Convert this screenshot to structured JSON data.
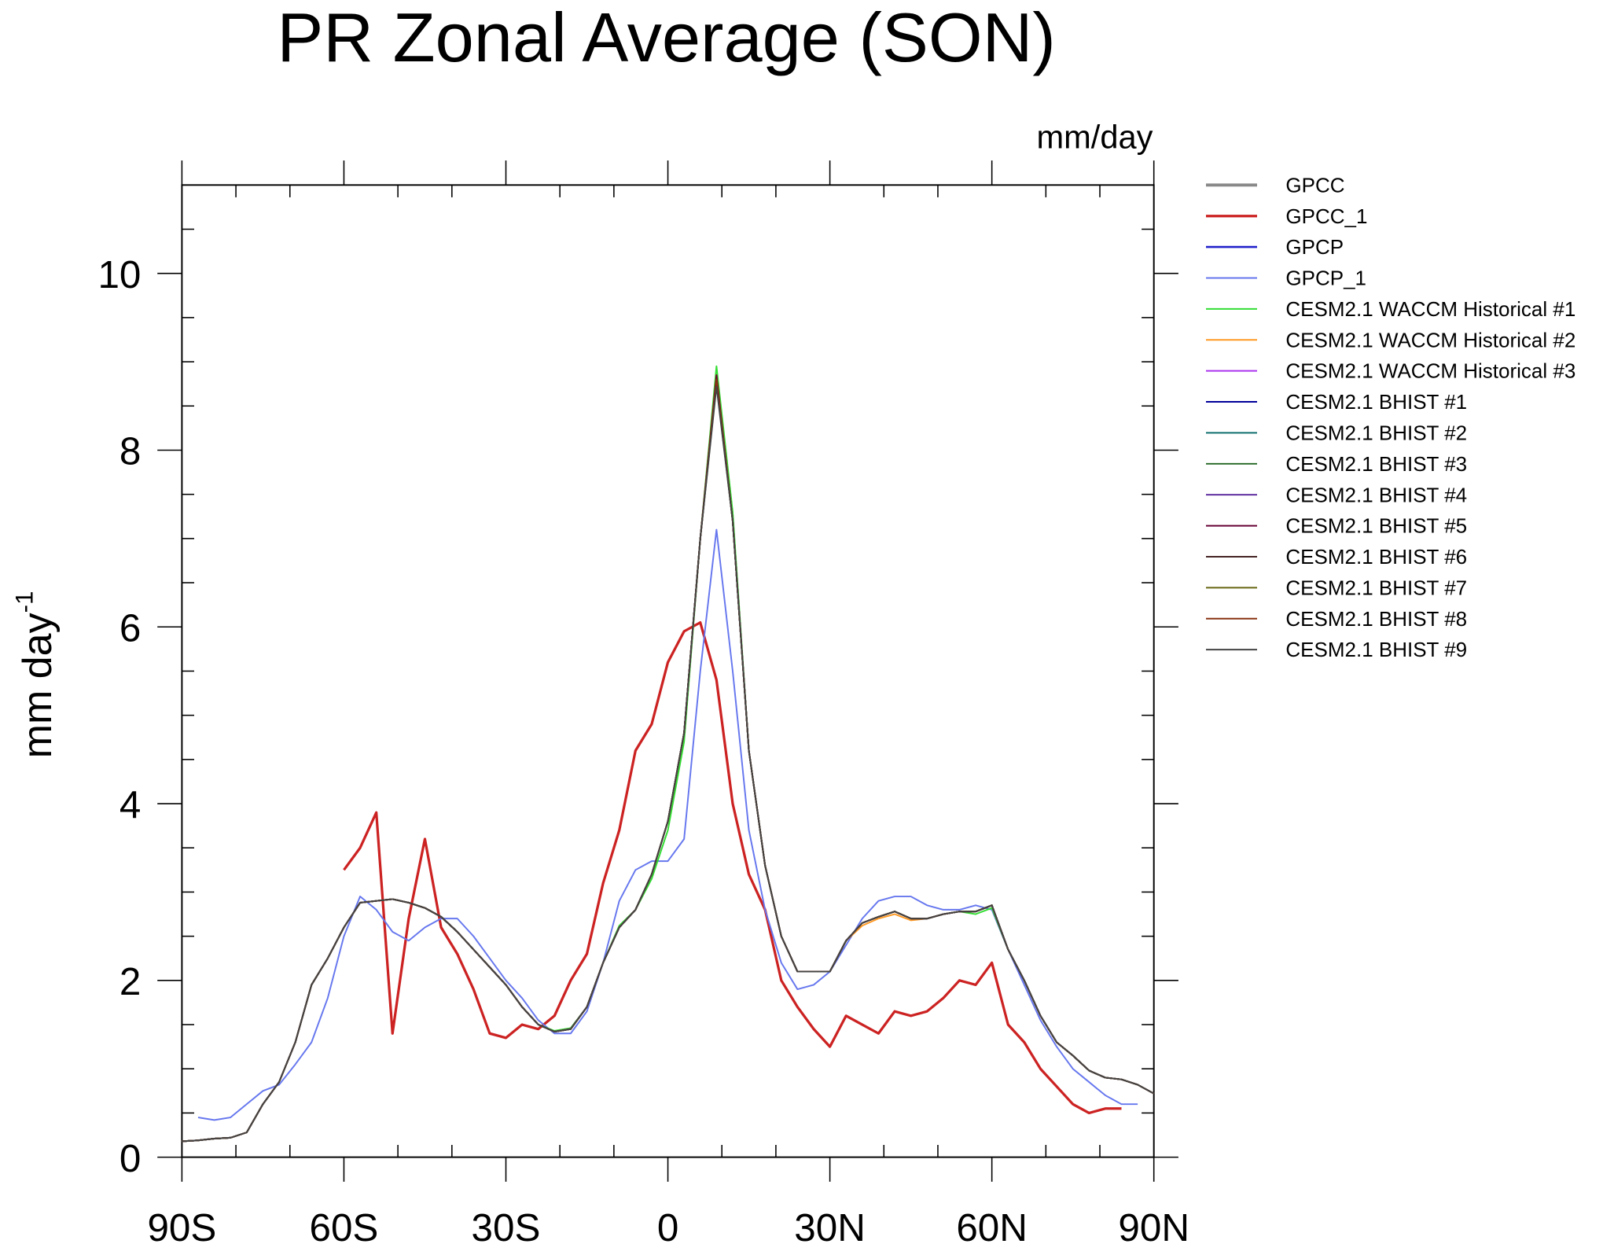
{
  "chart_data": {
    "type": "line",
    "title": "PR Zonal Average (SON)",
    "units": "mm/day",
    "y_label": "mm day",
    "y_label_sup": "-1",
    "xlim": [
      -90,
      90
    ],
    "ylim": [
      0,
      11
    ],
    "xticks": [
      {
        "value": -90,
        "label": "90S"
      },
      {
        "value": -60,
        "label": "60S"
      },
      {
        "value": -30,
        "label": "30S"
      },
      0,
      {
        "value": 30,
        "label": "30N"
      },
      {
        "value": 60,
        "label": "60N"
      },
      {
        "value": 90,
        "label": "90N"
      }
    ],
    "xminor_ticks": [
      -80,
      -70,
      -50,
      -40,
      -20,
      -10,
      10,
      20,
      40,
      50,
      70,
      80
    ],
    "yticks": [
      0,
      2,
      4,
      6,
      8,
      10
    ],
    "yminor_ticks": [
      0.5,
      1,
      1.5,
      2.5,
      3,
      3.5,
      4.5,
      5,
      5.5,
      6.5,
      7,
      7.5,
      8.5,
      9,
      9.5,
      10.5
    ],
    "x": [
      -90,
      -87,
      -84,
      -81,
      -78,
      -75,
      -72,
      -69,
      -66,
      -63,
      -60,
      -57,
      -54,
      -51,
      -48,
      -45,
      -42,
      -39,
      -36,
      -33,
      -30,
      -27,
      -24,
      -21,
      -18,
      -15,
      -12,
      -9,
      -6,
      -3,
      0,
      3,
      6,
      9,
      12,
      15,
      18,
      21,
      24,
      27,
      30,
      33,
      36,
      39,
      42,
      45,
      48,
      51,
      54,
      57,
      60,
      63,
      66,
      69,
      72,
      75,
      78,
      81,
      84,
      87,
      90
    ],
    "series": [
      {
        "name": "GPCC",
        "color": "#888888",
        "width": 3,
        "values": [
          null,
          null,
          null,
          null,
          null,
          null,
          null,
          null,
          null,
          null,
          null,
          null,
          null,
          null,
          null,
          null,
          null,
          null,
          null,
          null,
          null,
          null,
          null,
          null,
          null,
          null,
          null,
          null,
          null,
          null,
          null,
          null,
          null,
          null,
          null,
          null,
          null,
          null,
          null,
          null,
          null,
          null,
          null,
          null,
          null,
          null,
          null,
          null,
          null,
          null,
          null,
          null,
          null,
          null,
          null,
          null,
          null,
          null,
          null,
          null,
          null
        ]
      },
      {
        "name": "GPCC_1",
        "color": "#cc2222",
        "width": 2.5,
        "values": [
          null,
          null,
          null,
          null,
          null,
          null,
          null,
          null,
          null,
          null,
          3.25,
          3.5,
          3.9,
          1.4,
          2.7,
          3.6,
          2.6,
          2.3,
          1.9,
          1.4,
          1.35,
          1.5,
          1.45,
          1.6,
          2.0,
          2.3,
          3.1,
          3.7,
          4.6,
          4.9,
          5.6,
          5.95,
          6.05,
          5.4,
          4.0,
          3.2,
          2.8,
          2.0,
          1.7,
          1.45,
          1.25,
          1.6,
          1.5,
          1.4,
          1.65,
          1.6,
          1.65,
          1.8,
          2.0,
          1.95,
          2.2,
          1.5,
          1.3,
          1.0,
          0.8,
          0.6,
          0.5,
          0.55,
          0.55,
          null,
          null
        ]
      },
      {
        "name": "GPCP",
        "color": "#2222cc",
        "width": 2,
        "values": [
          null,
          null,
          null,
          null,
          null,
          null,
          null,
          null,
          null,
          null,
          null,
          null,
          null,
          null,
          null,
          null,
          null,
          null,
          null,
          null,
          null,
          null,
          null,
          null,
          null,
          null,
          null,
          null,
          null,
          null,
          null,
          null,
          null,
          null,
          null,
          null,
          null,
          null,
          null,
          null,
          null,
          null,
          null,
          null,
          null,
          null,
          null,
          null,
          null,
          null,
          null,
          null,
          null,
          null,
          null,
          null,
          null,
          null,
          null,
          null,
          null
        ]
      },
      {
        "name": "GPCP_1",
        "color": "#6677ee",
        "width": 1.5,
        "values": [
          null,
          0.45,
          0.42,
          0.45,
          0.6,
          0.75,
          0.82,
          1.05,
          1.3,
          1.8,
          2.5,
          2.95,
          2.8,
          2.55,
          2.45,
          2.6,
          2.7,
          2.7,
          2.5,
          2.25,
          2.0,
          1.8,
          1.55,
          1.4,
          1.4,
          1.65,
          2.2,
          2.9,
          3.25,
          3.35,
          3.35,
          3.6,
          5.5,
          7.1,
          5.5,
          3.7,
          2.8,
          2.2,
          1.9,
          1.95,
          2.1,
          2.4,
          2.7,
          2.9,
          2.95,
          2.95,
          2.85,
          2.8,
          2.8,
          2.85,
          2.8,
          2.35,
          1.95,
          1.55,
          1.25,
          1.0,
          0.85,
          0.7,
          0.6,
          0.6,
          null
        ]
      },
      {
        "name": "CESM2.1 WACCM Historical #1",
        "color": "#33dd33",
        "width": 1.5,
        "values": [
          0.18,
          0.19,
          0.21,
          0.22,
          0.28,
          0.6,
          0.85,
          1.3,
          1.95,
          2.25,
          2.6,
          2.88,
          2.9,
          2.92,
          2.88,
          2.82,
          2.72,
          2.55,
          2.35,
          2.15,
          1.95,
          1.7,
          1.5,
          1.43,
          1.46,
          1.7,
          2.2,
          2.62,
          2.8,
          3.15,
          3.7,
          4.7,
          7.0,
          8.95,
          7.3,
          4.6,
          3.3,
          2.5,
          2.1,
          2.1,
          2.1,
          2.45,
          2.65,
          2.72,
          2.78,
          2.7,
          2.7,
          2.75,
          2.78,
          2.75,
          2.82,
          2.35,
          2.0,
          1.6,
          1.3,
          1.15,
          0.98,
          0.9,
          0.88,
          0.82,
          0.72
        ]
      },
      {
        "name": "CESM2.1 WACCM Historical #2",
        "color": "#ff9922",
        "width": 1.5,
        "values": [
          0.18,
          0.19,
          0.21,
          0.22,
          0.28,
          0.6,
          0.85,
          1.3,
          1.95,
          2.25,
          2.6,
          2.88,
          2.9,
          2.92,
          2.88,
          2.82,
          2.72,
          2.55,
          2.35,
          2.15,
          1.95,
          1.7,
          1.5,
          1.42,
          1.45,
          1.7,
          2.2,
          2.6,
          2.8,
          3.2,
          3.8,
          4.8,
          7.0,
          8.85,
          7.2,
          4.6,
          3.3,
          2.5,
          2.1,
          2.1,
          2.1,
          2.45,
          2.62,
          2.7,
          2.75,
          2.68,
          2.7,
          2.75,
          2.78,
          2.78,
          2.85,
          2.35,
          2.0,
          1.6,
          1.3,
          1.15,
          0.98,
          0.9,
          0.88,
          0.82,
          0.72
        ]
      },
      {
        "name": "CESM2.1 WACCM Historical #3",
        "color": "#aa33ee",
        "width": 1.5,
        "values": [
          0.18,
          0.19,
          0.21,
          0.22,
          0.28,
          0.6,
          0.85,
          1.3,
          1.95,
          2.25,
          2.6,
          2.88,
          2.9,
          2.92,
          2.88,
          2.82,
          2.72,
          2.55,
          2.35,
          2.15,
          1.95,
          1.7,
          1.5,
          1.42,
          1.45,
          1.7,
          2.2,
          2.6,
          2.8,
          3.2,
          3.8,
          4.8,
          7.0,
          8.8,
          7.2,
          4.6,
          3.3,
          2.5,
          2.1,
          2.1,
          2.1,
          2.45,
          2.65,
          2.72,
          2.78,
          2.7,
          2.7,
          2.75,
          2.78,
          2.78,
          2.85,
          2.35,
          2.0,
          1.6,
          1.3,
          1.15,
          0.98,
          0.9,
          0.88,
          0.82,
          0.72
        ]
      },
      {
        "name": "CESM2.1 BHIST #1",
        "color": "#000099",
        "width": 1.5,
        "values": [
          0.18,
          0.19,
          0.21,
          0.22,
          0.28,
          0.6,
          0.85,
          1.3,
          1.95,
          2.25,
          2.6,
          2.88,
          2.9,
          2.92,
          2.88,
          2.82,
          2.72,
          2.55,
          2.35,
          2.15,
          1.95,
          1.7,
          1.5,
          1.42,
          1.45,
          1.7,
          2.2,
          2.6,
          2.8,
          3.2,
          3.8,
          4.8,
          7.0,
          8.8,
          7.2,
          4.6,
          3.3,
          2.5,
          2.1,
          2.1,
          2.1,
          2.45,
          2.65,
          2.72,
          2.78,
          2.7,
          2.7,
          2.75,
          2.78,
          2.78,
          2.85,
          2.35,
          2.0,
          1.6,
          1.3,
          1.15,
          0.98,
          0.9,
          0.88,
          0.82,
          0.72
        ]
      },
      {
        "name": "CESM2.1 BHIST #2",
        "color": "#006666",
        "width": 1.5,
        "values": [
          0.18,
          0.19,
          0.21,
          0.22,
          0.28,
          0.6,
          0.85,
          1.3,
          1.95,
          2.25,
          2.6,
          2.88,
          2.9,
          2.92,
          2.88,
          2.82,
          2.72,
          2.55,
          2.35,
          2.15,
          1.95,
          1.7,
          1.5,
          1.42,
          1.45,
          1.7,
          2.2,
          2.6,
          2.8,
          3.2,
          3.8,
          4.8,
          7.0,
          8.82,
          7.2,
          4.6,
          3.3,
          2.5,
          2.1,
          2.1,
          2.1,
          2.45,
          2.65,
          2.72,
          2.78,
          2.7,
          2.7,
          2.75,
          2.78,
          2.78,
          2.85,
          2.35,
          2.0,
          1.6,
          1.3,
          1.15,
          0.98,
          0.9,
          0.88,
          0.82,
          0.72
        ]
      },
      {
        "name": "CESM2.1 BHIST #3",
        "color": "#226622",
        "width": 1.5,
        "values": [
          0.18,
          0.19,
          0.21,
          0.22,
          0.28,
          0.6,
          0.85,
          1.3,
          1.95,
          2.25,
          2.6,
          2.88,
          2.9,
          2.92,
          2.88,
          2.82,
          2.72,
          2.55,
          2.35,
          2.15,
          1.95,
          1.7,
          1.5,
          1.42,
          1.45,
          1.7,
          2.2,
          2.6,
          2.8,
          3.2,
          3.8,
          4.8,
          7.0,
          8.78,
          7.2,
          4.6,
          3.3,
          2.5,
          2.1,
          2.1,
          2.1,
          2.45,
          2.65,
          2.72,
          2.78,
          2.7,
          2.7,
          2.75,
          2.78,
          2.78,
          2.85,
          2.35,
          2.0,
          1.6,
          1.3,
          1.15,
          0.98,
          0.9,
          0.88,
          0.82,
          0.72
        ]
      },
      {
        "name": "CESM2.1 BHIST #4",
        "color": "#552299",
        "width": 1.5,
        "values": [
          0.18,
          0.19,
          0.21,
          0.22,
          0.28,
          0.6,
          0.85,
          1.3,
          1.95,
          2.25,
          2.6,
          2.88,
          2.9,
          2.92,
          2.88,
          2.82,
          2.72,
          2.55,
          2.35,
          2.15,
          1.95,
          1.7,
          1.5,
          1.42,
          1.45,
          1.7,
          2.2,
          2.6,
          2.8,
          3.2,
          3.8,
          4.8,
          7.0,
          8.8,
          7.2,
          4.6,
          3.3,
          2.5,
          2.1,
          2.1,
          2.1,
          2.45,
          2.65,
          2.72,
          2.78,
          2.7,
          2.7,
          2.75,
          2.78,
          2.78,
          2.85,
          2.35,
          2.0,
          1.6,
          1.3,
          1.15,
          0.98,
          0.9,
          0.88,
          0.82,
          0.72
        ]
      },
      {
        "name": "CESM2.1 BHIST #5",
        "color": "#660033",
        "width": 1.5,
        "values": [
          0.18,
          0.19,
          0.21,
          0.22,
          0.28,
          0.6,
          0.85,
          1.3,
          1.95,
          2.25,
          2.6,
          2.88,
          2.9,
          2.92,
          2.88,
          2.82,
          2.72,
          2.55,
          2.35,
          2.15,
          1.95,
          1.7,
          1.5,
          1.42,
          1.45,
          1.7,
          2.2,
          2.6,
          2.8,
          3.2,
          3.8,
          4.8,
          7.0,
          8.85,
          7.2,
          4.6,
          3.3,
          2.5,
          2.1,
          2.1,
          2.1,
          2.45,
          2.65,
          2.72,
          2.78,
          2.7,
          2.7,
          2.75,
          2.78,
          2.78,
          2.85,
          2.35,
          2.0,
          1.6,
          1.3,
          1.15,
          0.98,
          0.9,
          0.88,
          0.82,
          0.72
        ]
      },
      {
        "name": "CESM2.1 BHIST #6",
        "color": "#442222",
        "width": 1.5,
        "values": [
          0.18,
          0.19,
          0.21,
          0.22,
          0.28,
          0.6,
          0.85,
          1.3,
          1.95,
          2.25,
          2.6,
          2.88,
          2.9,
          2.92,
          2.88,
          2.82,
          2.72,
          2.55,
          2.35,
          2.15,
          1.95,
          1.7,
          1.5,
          1.42,
          1.45,
          1.7,
          2.2,
          2.6,
          2.8,
          3.2,
          3.8,
          4.8,
          7.0,
          8.8,
          7.2,
          4.6,
          3.3,
          2.5,
          2.1,
          2.1,
          2.1,
          2.45,
          2.65,
          2.72,
          2.78,
          2.7,
          2.7,
          2.75,
          2.78,
          2.78,
          2.85,
          2.35,
          2.0,
          1.6,
          1.3,
          1.15,
          0.98,
          0.9,
          0.88,
          0.82,
          0.72
        ]
      },
      {
        "name": "CESM2.1 BHIST #7",
        "color": "#666611",
        "width": 1.5,
        "values": [
          0.18,
          0.19,
          0.21,
          0.22,
          0.28,
          0.6,
          0.85,
          1.3,
          1.95,
          2.25,
          2.6,
          2.88,
          2.9,
          2.92,
          2.88,
          2.82,
          2.72,
          2.55,
          2.35,
          2.15,
          1.95,
          1.7,
          1.5,
          1.42,
          1.45,
          1.7,
          2.2,
          2.6,
          2.8,
          3.2,
          3.8,
          4.8,
          7.0,
          8.75,
          7.2,
          4.6,
          3.3,
          2.5,
          2.1,
          2.1,
          2.1,
          2.45,
          2.65,
          2.72,
          2.78,
          2.7,
          2.7,
          2.75,
          2.78,
          2.78,
          2.85,
          2.35,
          2.0,
          1.6,
          1.3,
          1.15,
          0.98,
          0.9,
          0.88,
          0.82,
          0.72
        ]
      },
      {
        "name": "CESM2.1 BHIST #8",
        "color": "#883311",
        "width": 1.5,
        "values": [
          0.18,
          0.19,
          0.21,
          0.22,
          0.28,
          0.6,
          0.85,
          1.3,
          1.95,
          2.25,
          2.6,
          2.88,
          2.9,
          2.92,
          2.88,
          2.82,
          2.72,
          2.55,
          2.35,
          2.15,
          1.95,
          1.7,
          1.5,
          1.42,
          1.45,
          1.7,
          2.2,
          2.6,
          2.8,
          3.2,
          3.8,
          4.8,
          7.0,
          8.8,
          7.2,
          4.6,
          3.3,
          2.5,
          2.1,
          2.1,
          2.1,
          2.45,
          2.65,
          2.72,
          2.78,
          2.7,
          2.7,
          2.75,
          2.78,
          2.78,
          2.85,
          2.35,
          2.0,
          1.6,
          1.3,
          1.15,
          0.98,
          0.9,
          0.88,
          0.82,
          0.72
        ]
      },
      {
        "name": "CESM2.1 BHIST #9",
        "color": "#444444",
        "width": 1.5,
        "values": [
          0.18,
          0.19,
          0.21,
          0.22,
          0.28,
          0.6,
          0.85,
          1.3,
          1.95,
          2.25,
          2.6,
          2.88,
          2.9,
          2.92,
          2.88,
          2.82,
          2.72,
          2.55,
          2.35,
          2.15,
          1.95,
          1.7,
          1.5,
          1.42,
          1.45,
          1.7,
          2.2,
          2.6,
          2.8,
          3.2,
          3.8,
          4.8,
          7.0,
          8.72,
          7.2,
          4.6,
          3.3,
          2.5,
          2.1,
          2.1,
          2.1,
          2.45,
          2.65,
          2.72,
          2.78,
          2.7,
          2.7,
          2.75,
          2.78,
          2.78,
          2.85,
          2.35,
          2.0,
          1.6,
          1.3,
          1.15,
          0.98,
          0.9,
          0.88,
          0.82,
          0.72
        ]
      }
    ]
  }
}
